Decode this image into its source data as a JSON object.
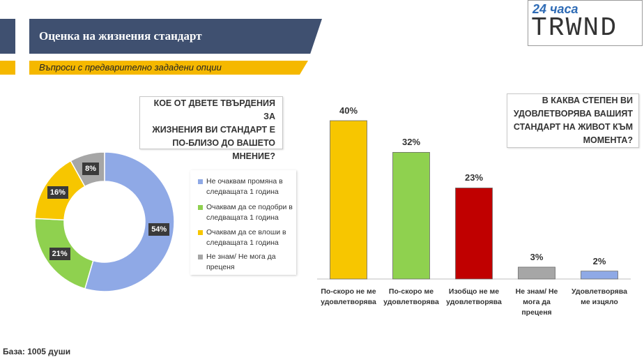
{
  "header": {
    "title": "Оценка на жизнения стандарт",
    "subtitle": "Въпроси с предварително зададени опции"
  },
  "logo": {
    "top": "24 часа",
    "bottom": "TRWND"
  },
  "footer": {
    "base": "База: 1005 души"
  },
  "colors": {
    "navy": "#3f5070",
    "yellow": "#f5b800",
    "blue": "#8fa9e6",
    "green": "#8fd14f",
    "gold": "#f7c600",
    "red": "#c00000",
    "gray": "#a6a6a6"
  },
  "chart_data": [
    {
      "type": "pie",
      "title": "КОЕ ОТ ДВЕТЕ ТВЪРДЕНИЯ ЗА ЖИЗНЕНИЯ ВИ СТАНДАРТ Е ПО-БЛИЗО ДО ВАШЕТО МНЕНИЕ?",
      "title_lines": [
        "КОЕ ОТ ДВЕТЕ ТВЪРДЕНИЯ ЗА",
        "ЖИЗНЕНИЯ ВИ СТАНДАРТ  Е",
        "ПО-БЛИЗО ДО ВАШЕТО",
        "МНЕНИЕ?"
      ],
      "categories": [
        "Не очаквам промяна в следващата 1 година",
        "Очаквам да се подобри в следващата 1 година",
        "Очаквам да се влоши в следващата 1 година",
        "Не знам/ Не мога да преценя"
      ],
      "values": [
        54,
        21,
        16,
        8
      ],
      "labels": [
        "54%",
        "21%",
        "16%",
        "8%"
      ],
      "colors": [
        "#8fa9e6",
        "#8fd14f",
        "#f7c600",
        "#a6a6a6"
      ],
      "legend_position": "right"
    },
    {
      "type": "bar",
      "title": "В КАКВА СТЕПЕН ВИ УДОВЛЕТВОРЯВА ВАШИЯТ СТАНДАРТ НА ЖИВОТ КЪМ МОМЕНТА?",
      "title_lines": [
        "В КАКВА СТЕПЕН ВИ",
        "УДОВЛЕТВОРЯВА ВАШИЯТ",
        "СТАНДАРТ НА ЖИВОТ КЪМ",
        "МОМЕНТА?"
      ],
      "categories": [
        "По-скоро не ме удовлетворява",
        "По-скоро ме удовлетворява",
        "Изобщо не ме удовлетворява",
        "Не знам/ Не мога да преценя",
        "Удовлетворява ме изцяло"
      ],
      "category_lines": [
        [
          "По-скоро не ме",
          "удовлетворява"
        ],
        [
          "По-скоро ме",
          "удовлетворява"
        ],
        [
          "Изобщо не ме",
          "удовлетворява"
        ],
        [
          "Не знам/ Не",
          "мога да",
          "преценя"
        ],
        [
          "Удовлетворява",
          "ме изцяло"
        ]
      ],
      "values": [
        40,
        32,
        23,
        3,
        2
      ],
      "labels": [
        "40%",
        "32%",
        "23%",
        "3%",
        "2%"
      ],
      "colors": [
        "#f7c600",
        "#8fd14f",
        "#c00000",
        "#a6a6a6",
        "#8fa9e6"
      ],
      "ylim": [
        0,
        40
      ]
    }
  ]
}
